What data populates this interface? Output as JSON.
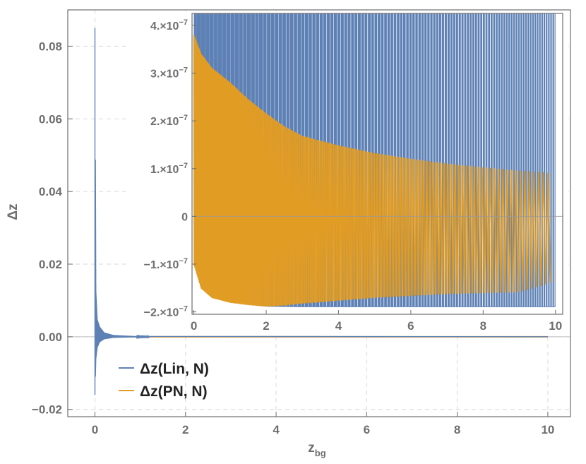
{
  "chart_data": [
    {
      "type": "line",
      "panel": "main",
      "xlabel": "z",
      "xlabel_sub": "bg",
      "ylabel": "Δz",
      "xlim": [
        -0.6,
        10.5
      ],
      "ylim": [
        -0.022,
        0.09
      ],
      "x_ticks": [
        0,
        2,
        4,
        6,
        8,
        10
      ],
      "x_tick_labels": [
        "0",
        "2",
        "4",
        "6",
        "8",
        "10"
      ],
      "y_ticks": [
        -0.02,
        0.0,
        0.02,
        0.04,
        0.06,
        0.08
      ],
      "y_tick_labels": [
        "−0.02",
        "0.00",
        "0.02",
        "0.04",
        "0.06",
        "0.08"
      ],
      "grid": true,
      "legend_position": "bottom-left",
      "series": [
        {
          "name": "Δz(Lin, N)",
          "color": "#5e81b5",
          "description_points": {
            "x": [
              0.0,
              0.0,
              0.02,
              0.05,
              0.1,
              0.2,
              0.4,
              1.0,
              10.0
            ],
            "y_upper": [
              0.085,
              0.085,
              0.0125,
              0.0048,
              0.0028,
              0.0012,
              0.0005,
              0.0001,
              0.0
            ],
            "y_lower": [
              -0.016,
              -0.016,
              -0.006,
              -0.003,
              -0.0015,
              -0.0007,
              -0.0003,
              -0.0001,
              0.0
            ]
          }
        },
        {
          "name": "Δz(PN, N)",
          "color": "#e19c24",
          "description_points": {
            "x": [
              0.0,
              10.0
            ],
            "y_upper": [
              0.0,
              0.0
            ],
            "y_lower": [
              0.0,
              0.0
            ]
          }
        }
      ]
    },
    {
      "type": "line",
      "panel": "inset",
      "xlim": [
        -0.05,
        10.2
      ],
      "ylim": [
        -2.05e-07,
        4.25e-07
      ],
      "x_ticks": [
        0,
        2,
        4,
        6,
        8,
        10
      ],
      "x_tick_labels": [
        "0",
        "2",
        "4",
        "6",
        "8",
        "10"
      ],
      "y_ticks": [
        -2e-07,
        -1e-07,
        0,
        1e-07,
        2e-07,
        3e-07,
        4e-07
      ],
      "y_tick_labels": [
        {
          "mantissa": "−2.",
          "exp": "−7"
        },
        {
          "mantissa": "−1.",
          "exp": "−7"
        },
        {
          "mantissa": "0",
          "exp": ""
        },
        {
          "mantissa": "1.",
          "exp": "−7"
        },
        {
          "mantissa": "2.",
          "exp": "−7"
        },
        {
          "mantissa": "3.",
          "exp": "−7"
        },
        {
          "mantissa": "4.",
          "exp": "−7"
        }
      ],
      "series": [
        {
          "name": "Δz(Lin, N)",
          "color": "#5e81b5",
          "envelope": {
            "x": [
              0,
              0.5,
              1,
              2,
              3,
              4,
              6,
              8,
              10
            ],
            "upper": [
              4.3e-07,
              4.3e-07,
              4.3e-07,
              4.3e-07,
              4.3e-07,
              4.3e-07,
              4.3e-07,
              4.3e-07,
              4.3e-07
            ],
            "lower": [
              -1e-07,
              -1.62e-07,
              -1.8e-07,
              -1.89e-07,
              -1.9e-07,
              -1.9e-07,
              -1.9e-07,
              -1.9e-07,
              -1.9e-07
            ]
          }
        },
        {
          "name": "Δz(PN, N)",
          "color": "#e19c24",
          "envelope": {
            "x": [
              0,
              0.2,
              0.5,
              1,
              1.5,
              2,
              2.5,
              3,
              4,
              5,
              6,
              7,
              8,
              9,
              9.9
            ],
            "upper": [
              3.8e-07,
              3.4e-07,
              3.1e-07,
              2.8e-07,
              2.45e-07,
              2.15e-07,
              1.88e-07,
              1.68e-07,
              1.48e-07,
              1.32e-07,
              1.2e-07,
              1.1e-07,
              1.02e-07,
              9.5e-08,
              9e-08
            ],
            "lower": [
              -1e-07,
              -1.5e-07,
              -1.7e-07,
              -1.8e-07,
              -1.85e-07,
              -1.88e-07,
              -1.86e-07,
              -1.82e-07,
              -1.76e-07,
              -1.7e-07,
              -1.66e-07,
              -1.62e-07,
              -1.6e-07,
              -1.58e-07,
              -1.38e-07
            ]
          }
        }
      ]
    }
  ],
  "legend": {
    "items": [
      {
        "label": "Δz(Lin, N)",
        "color": "#5e81b5"
      },
      {
        "label": "Δz(PN, N)",
        "color": "#e19c24"
      }
    ]
  },
  "colors": {
    "axis": "#6e6e6e",
    "grid": "#d9d9d9",
    "lin": "#5e81b5",
    "pn": "#e19c24"
  }
}
